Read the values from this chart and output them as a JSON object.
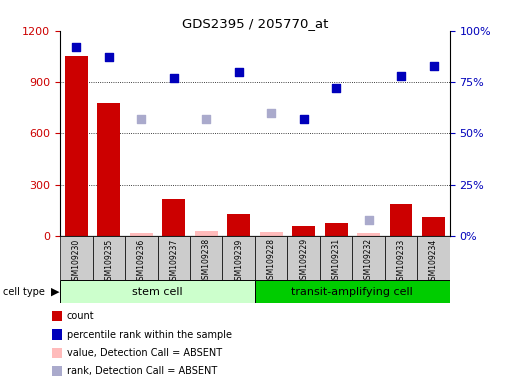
{
  "title": "GDS2395 / 205770_at",
  "samples": [
    "GSM109230",
    "GSM109235",
    "GSM109236",
    "GSM109237",
    "GSM109238",
    "GSM109239",
    "GSM109228",
    "GSM109229",
    "GSM109231",
    "GSM109232",
    "GSM109233",
    "GSM109234"
  ],
  "count_values": [
    1050,
    780,
    18,
    215,
    30,
    130,
    25,
    60,
    75,
    20,
    190,
    110
  ],
  "count_absent": [
    false,
    false,
    true,
    false,
    true,
    false,
    true,
    false,
    false,
    true,
    false,
    false
  ],
  "percentile_values": [
    92,
    87,
    57,
    77,
    57,
    80,
    60,
    57,
    72,
    8,
    78,
    83
  ],
  "percentile_absent": [
    false,
    false,
    true,
    false,
    true,
    false,
    true,
    false,
    false,
    true,
    false,
    false
  ],
  "ylim_left": [
    0,
    1200
  ],
  "yticks_left": [
    0,
    300,
    600,
    900,
    1200
  ],
  "ytick_labels_left": [
    "0",
    "300",
    "600",
    "900",
    "1200"
  ],
  "ytick_labels_right": [
    "0%",
    "25%",
    "50%",
    "75%",
    "100%"
  ],
  "bar_color_present": "#cc0000",
  "bar_color_absent": "#ffbbbb",
  "dot_color_present": "#0000bb",
  "dot_color_absent": "#aaaacc",
  "stem_cell_color": "#ccffcc",
  "transit_cell_color": "#00cc00",
  "sample_bg": "#cccccc",
  "bg_color": "#ffffff",
  "grid_color": "#000000",
  "left_tick_color": "#cc0000",
  "right_tick_color": "#0000bb",
  "legend_items": [
    {
      "label": "count",
      "color": "#cc0000",
      "marker": "s"
    },
    {
      "label": "percentile rank within the sample",
      "color": "#0000bb",
      "marker": "s"
    },
    {
      "label": "value, Detection Call = ABSENT",
      "color": "#ffbbbb",
      "marker": "s"
    },
    {
      "label": "rank, Detection Call = ABSENT",
      "color": "#aaaacc",
      "marker": "s"
    }
  ]
}
